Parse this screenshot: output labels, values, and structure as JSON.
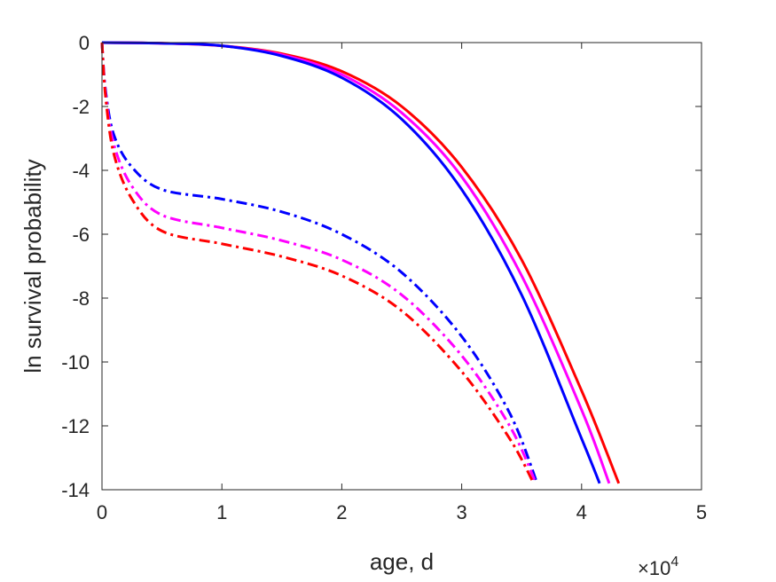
{
  "chart_data": {
    "type": "line",
    "xlabel": "age, d",
    "ylabel": "ln survival probability",
    "x_multiplier": {
      "base": "×10",
      "exponent": "4"
    },
    "xlim": [
      0,
      50000
    ],
    "ylim": [
      -14,
      0
    ],
    "xticks": [
      0,
      10000,
      20000,
      30000,
      40000,
      50000
    ],
    "xtick_labels": [
      "0",
      "1",
      "2",
      "3",
      "4",
      "5"
    ],
    "yticks": [
      0,
      -2,
      -4,
      -6,
      -8,
      -10,
      -12,
      -14
    ],
    "ytick_labels": [
      "0",
      "-2",
      "-4",
      "-6",
      "-8",
      "-10",
      "-12",
      "-14"
    ],
    "grid": false,
    "legend": "none",
    "series": [
      {
        "color": "#ff0000",
        "style": "solid",
        "x": [
          0,
          5000,
          10000,
          15000,
          20000,
          25000,
          30000,
          35000,
          40000,
          43100
        ],
        "y": [
          0,
          -0.02,
          -0.1,
          -0.35,
          -0.9,
          -2.0,
          -3.9,
          -6.8,
          -10.9,
          -13.8
        ]
      },
      {
        "color": "#ff00ff",
        "style": "solid",
        "x": [
          0,
          5000,
          10000,
          15000,
          20000,
          25000,
          30000,
          35000,
          40000,
          42300
        ],
        "y": [
          0,
          -0.02,
          -0.1,
          -0.38,
          -1.0,
          -2.2,
          -4.2,
          -7.3,
          -11.5,
          -13.8
        ]
      },
      {
        "color": "#0000ff",
        "style": "solid",
        "x": [
          0,
          5000,
          10000,
          15000,
          20000,
          25000,
          30000,
          35000,
          40000,
          41500
        ],
        "y": [
          0,
          -0.02,
          -0.1,
          -0.42,
          -1.1,
          -2.4,
          -4.6,
          -7.9,
          -12.4,
          -13.8
        ]
      },
      {
        "color": "#0000ff",
        "style": "dashdot",
        "x": [
          0,
          300,
          1000,
          2500,
          5000,
          10000,
          15000,
          20000,
          25000,
          30000,
          34000,
          36300
        ],
        "y": [
          0,
          -1.5,
          -2.9,
          -3.9,
          -4.6,
          -4.9,
          -5.3,
          -6.0,
          -7.2,
          -9.2,
          -11.6,
          -13.8
        ]
      },
      {
        "color": "#ff00ff",
        "style": "dashdot",
        "x": [
          0,
          300,
          1000,
          2500,
          5000,
          10000,
          15000,
          20000,
          25000,
          30000,
          34000,
          36200
        ],
        "y": [
          0,
          -1.6,
          -3.2,
          -4.5,
          -5.4,
          -5.8,
          -6.2,
          -6.8,
          -7.9,
          -9.8,
          -12.0,
          -13.8
        ]
      },
      {
        "color": "#ff0000",
        "style": "dashdot",
        "x": [
          0,
          300,
          1000,
          2500,
          5000,
          10000,
          15000,
          20000,
          25000,
          30000,
          34000,
          36000
        ],
        "y": [
          0,
          -1.7,
          -3.5,
          -4.9,
          -5.9,
          -6.3,
          -6.7,
          -7.3,
          -8.4,
          -10.3,
          -12.4,
          -13.8
        ]
      }
    ]
  }
}
